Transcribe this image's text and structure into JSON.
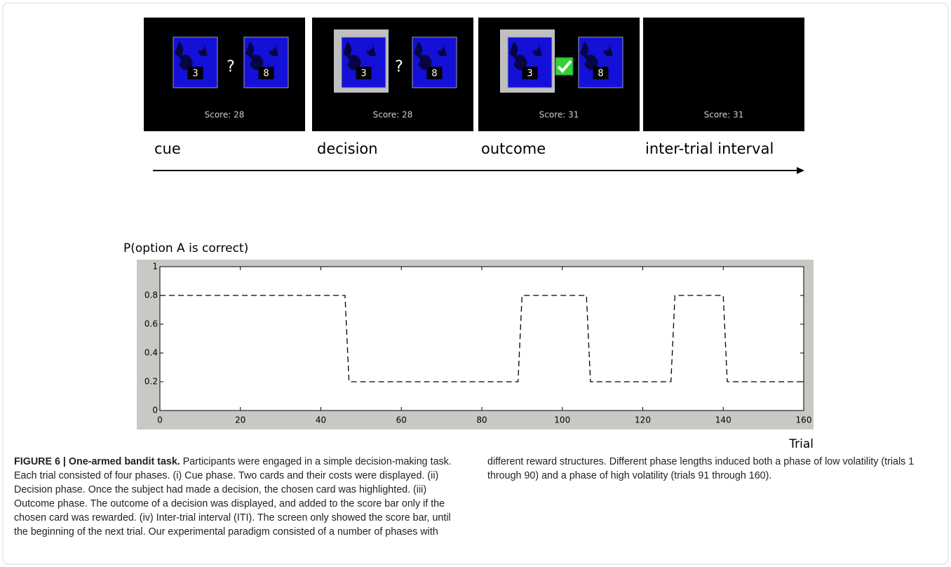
{
  "panels": [
    {
      "card_a": "3",
      "symbol": "?",
      "card_b": "8",
      "score": "Score:  28",
      "label": "cue"
    },
    {
      "card_a": "3",
      "symbol": "?",
      "card_b": "8",
      "score": "Score:  28",
      "label": "decision"
    },
    {
      "card_a": "3",
      "card_b": "8",
      "score": "Score:  31",
      "label": "outcome"
    },
    {
      "score": "Score:  31",
      "label": "inter-trial interval"
    }
  ],
  "chart_data": {
    "type": "line",
    "y_label": "P(option A is correct)",
    "x_label": "Trial",
    "x": [
      0,
      46,
      47,
      89,
      90,
      106,
      107,
      127,
      128,
      140,
      141,
      160
    ],
    "values": [
      0.8,
      0.8,
      0.2,
      0.2,
      0.8,
      0.8,
      0.2,
      0.2,
      0.8,
      0.8,
      0.2,
      0.2
    ],
    "color": "#000000",
    "line_style": "dashed",
    "xlim": [
      0,
      160
    ],
    "xticks": [
      0,
      20,
      40,
      60,
      80,
      100,
      120,
      140,
      160
    ],
    "ylim": [
      0,
      1
    ],
    "yticks": [
      0,
      0.2,
      0.4,
      0.6,
      0.8,
      1
    ]
  },
  "caption": {
    "title": "FIGURE 6 | One-armed bandit task.",
    "text": "Participants were engaged in a simple decision-making task. Each trial consisted of four phases. (i) Cue phase. Two cards and their costs were displayed. (ii) Decision phase. Once the subject had made a decision, the chosen card was highlighted. (iii) Outcome phase. The outcome of a decision was displayed, and added to the score bar only if the chosen card was rewarded. (iv) Inter-trial interval (ITI). The screen only showed the score bar, until the beginning of the next trial. Our experimental paradigm consisted of a number of phases with different reward structures. Different phase lengths induced both a phase of low volatility (trials 1 through 90) and a phase of high volatility (trials 91 through 160)."
  }
}
